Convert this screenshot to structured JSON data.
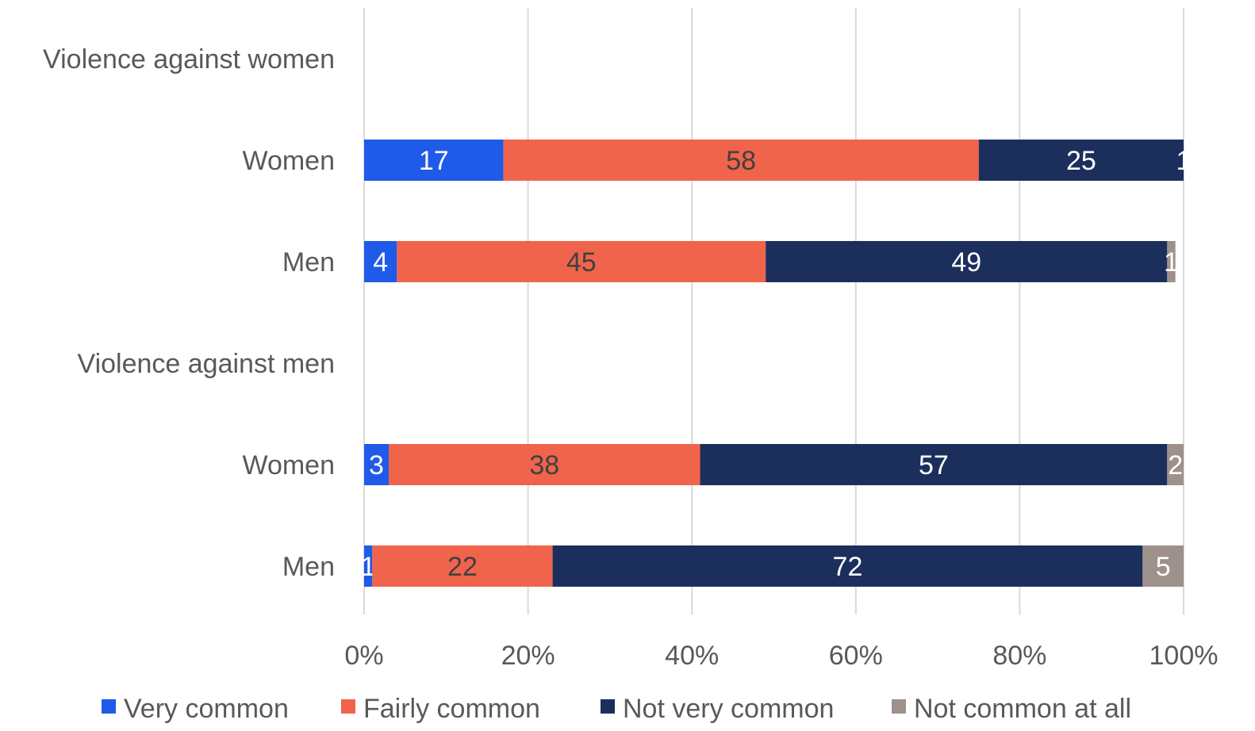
{
  "chart_data": {
    "type": "bar",
    "orientation": "horizontal",
    "stacked": "percent",
    "categories": [
      "Violence against women",
      "Women",
      "Men",
      "Violence against men",
      "Women",
      "Men"
    ],
    "category_kind": [
      "header",
      "bar",
      "bar",
      "header",
      "bar",
      "bar"
    ],
    "series": [
      {
        "name": "Very common",
        "color": "#1f5ae8",
        "label_color": "#ffffff",
        "values": [
          null,
          17,
          4,
          null,
          3,
          1
        ]
      },
      {
        "name": "Fairly common",
        "color": "#f0644b",
        "label_color": "#404040",
        "values": [
          null,
          58,
          45,
          null,
          38,
          22
        ]
      },
      {
        "name": "Not very common",
        "color": "#1c2f5c",
        "label_color": "#ffffff",
        "values": [
          null,
          25,
          49,
          null,
          57,
          72
        ]
      },
      {
        "name": "Not common at all",
        "color": "#9e918b",
        "label_color": "#ffffff",
        "values": [
          null,
          1,
          1,
          null,
          2,
          5
        ]
      }
    ],
    "xticks": [
      "0%",
      "20%",
      "40%",
      "60%",
      "80%",
      "100%"
    ],
    "xlim": [
      0,
      100
    ],
    "grid": true,
    "legend_position": "bottom"
  }
}
